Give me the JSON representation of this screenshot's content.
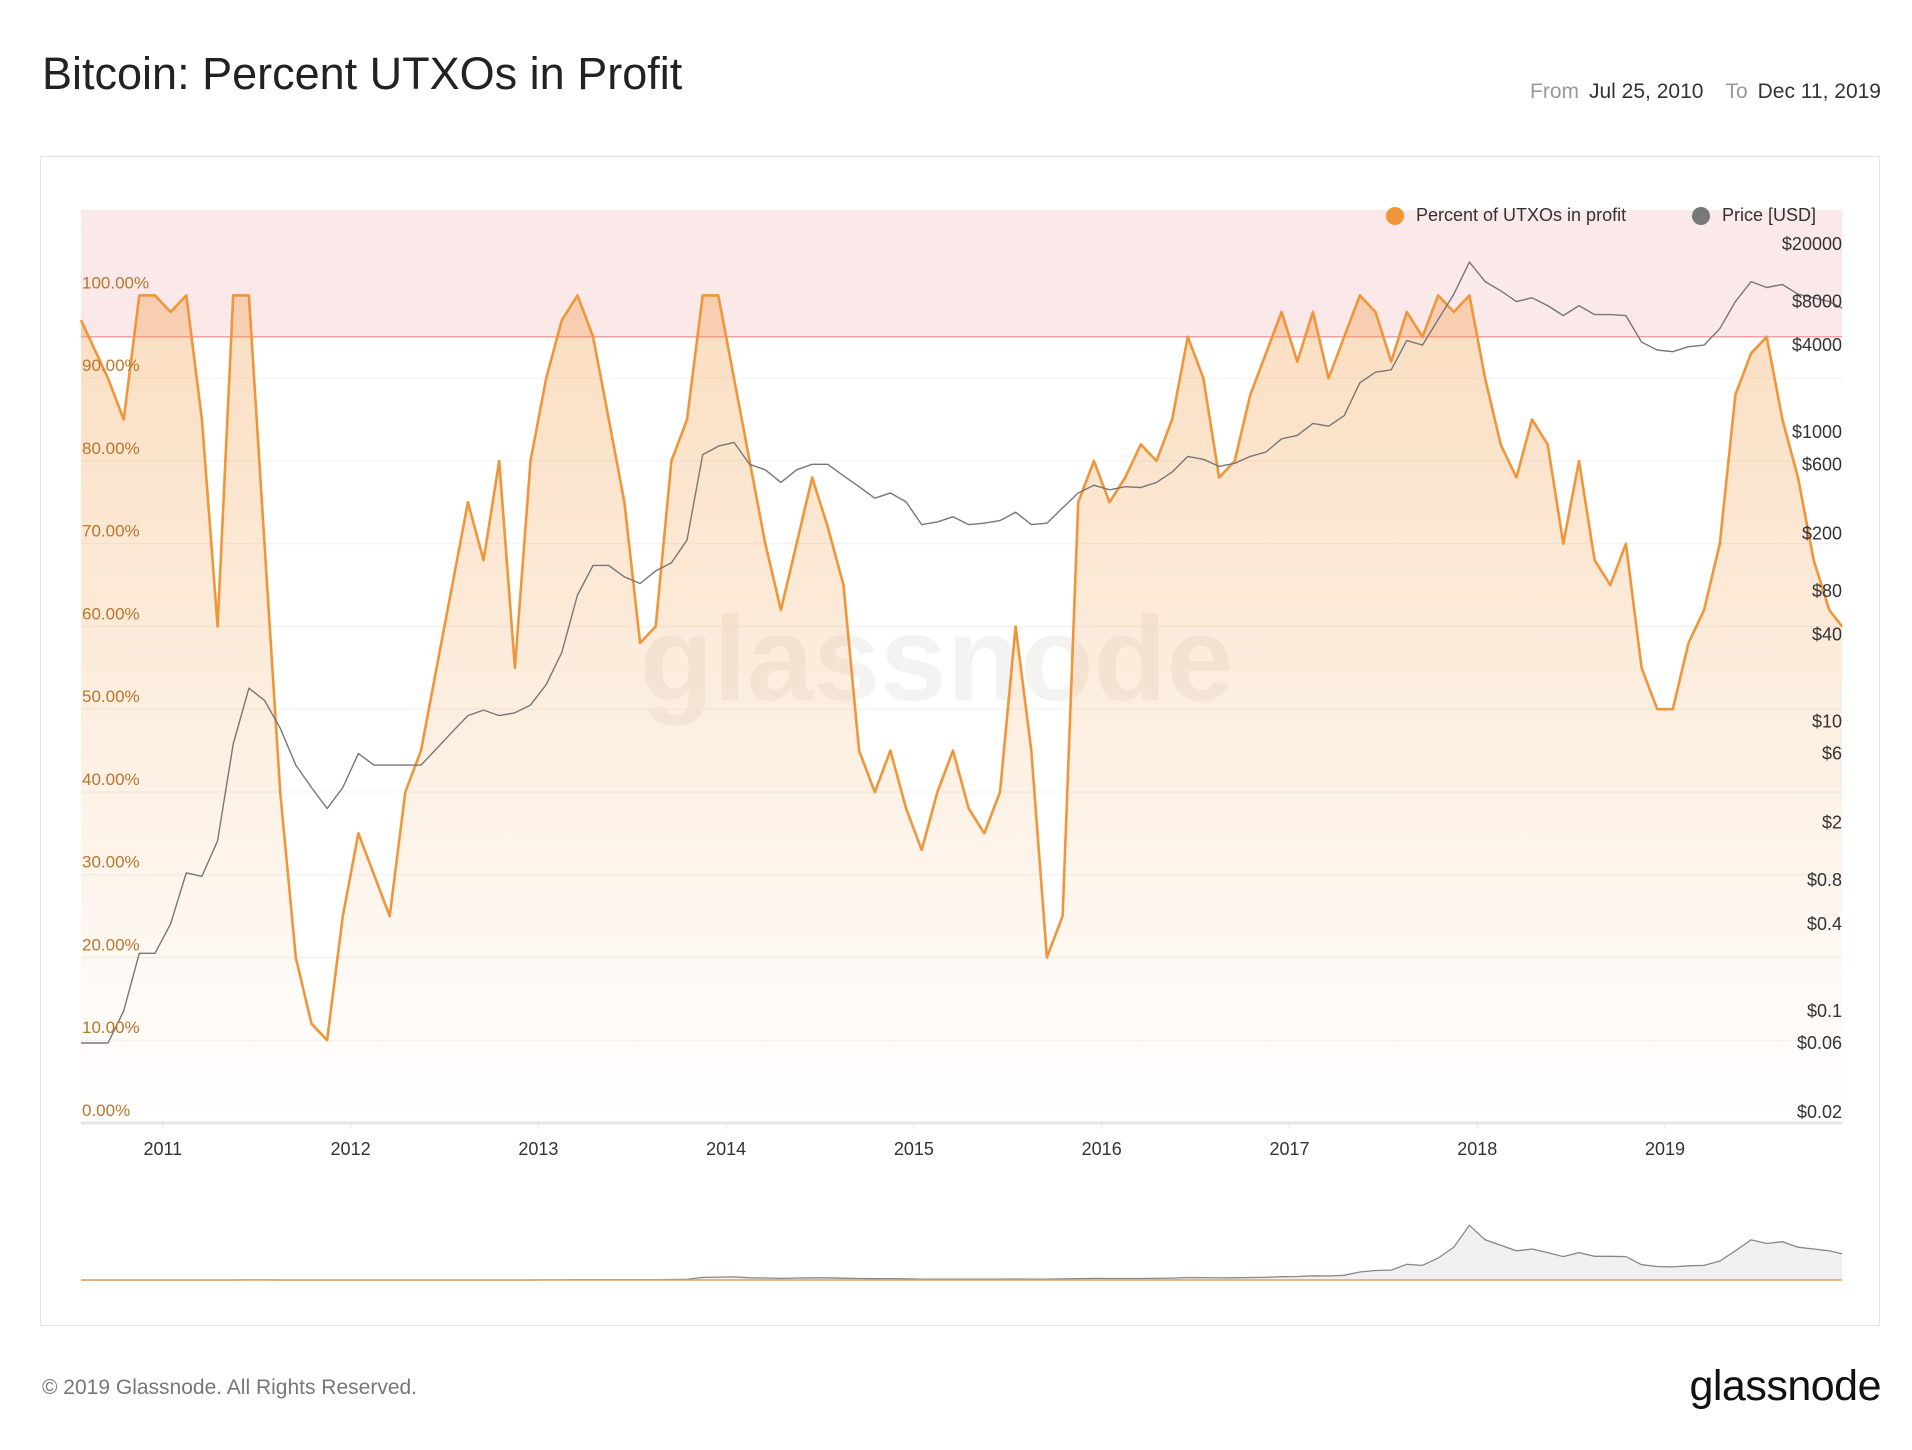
{
  "header": {
    "title": "Bitcoin: Percent UTXOs in Profit",
    "from_label": "From",
    "from_value": "Jul 25, 2010",
    "to_label": "To",
    "to_value": "Dec 11, 2019"
  },
  "footer": {
    "copyright": "© 2019 Glassnode. All Rights Reserved.",
    "logo": "glassnode"
  },
  "watermark": "glassnode",
  "colors": {
    "percent": "#f0963a",
    "price": "#777777",
    "band": "#fbe8e8",
    "band_line": "#f0a0a0"
  },
  "chart_data": {
    "type": "line",
    "title": "Bitcoin: Percent UTXOs in Profit",
    "legend_position": "top-right",
    "grid": true,
    "x_ticks": [
      "2011",
      "2012",
      "2013",
      "2014",
      "2015",
      "2016",
      "2017",
      "2018",
      "2019"
    ],
    "x_range": [
      "2010-07-25",
      "2019-12-11"
    ],
    "y_left": {
      "ticks": [
        "0.00%",
        "10.00%",
        "20.00%",
        "30.00%",
        "40.00%",
        "50.00%",
        "60.00%",
        "70.00%",
        "80.00%",
        "90.00%",
        "100.00%"
      ],
      "range": [
        0,
        100
      ]
    },
    "y_right": {
      "scale": "log",
      "ticks": [
        "$20000",
        "$8000",
        "$4000",
        "$1000",
        "$600",
        "$200",
        "$80",
        "$40",
        "$10",
        "$6",
        "$2",
        "$0.8",
        "$0.4",
        "$0.1",
        "$0.06",
        "$0.02"
      ],
      "range": [
        0.02,
        20000
      ]
    },
    "highlight_band": {
      "from_percent": 95,
      "to_percent": 100
    },
    "dates": [
      "2010-08",
      "2010-09",
      "2010-10",
      "2010-11",
      "2010-12",
      "2011-01",
      "2011-02",
      "2011-03",
      "2011-04",
      "2011-05",
      "2011-06",
      "2011-07",
      "2011-08",
      "2011-09",
      "2011-10",
      "2011-11",
      "2011-12",
      "2012-01",
      "2012-02",
      "2012-03",
      "2012-04",
      "2012-05",
      "2012-06",
      "2012-07",
      "2012-08",
      "2012-09",
      "2012-10",
      "2012-11",
      "2012-12",
      "2013-01",
      "2013-02",
      "2013-03",
      "2013-04",
      "2013-05",
      "2013-06",
      "2013-07",
      "2013-08",
      "2013-09",
      "2013-10",
      "2013-11",
      "2013-12",
      "2014-01",
      "2014-02",
      "2014-03",
      "2014-04",
      "2014-05",
      "2014-06",
      "2014-07",
      "2014-08",
      "2014-09",
      "2014-10",
      "2014-11",
      "2014-12",
      "2015-01",
      "2015-02",
      "2015-03",
      "2015-04",
      "2015-05",
      "2015-06",
      "2015-07",
      "2015-08",
      "2015-09",
      "2015-10",
      "2015-11",
      "2015-12",
      "2016-01",
      "2016-02",
      "2016-03",
      "2016-04",
      "2016-05",
      "2016-06",
      "2016-07",
      "2016-08",
      "2016-09",
      "2016-10",
      "2016-11",
      "2016-12",
      "2017-01",
      "2017-02",
      "2017-03",
      "2017-04",
      "2017-05",
      "2017-06",
      "2017-07",
      "2017-08",
      "2017-09",
      "2017-10",
      "2017-11",
      "2017-12",
      "2018-01",
      "2018-02",
      "2018-03",
      "2018-04",
      "2018-05",
      "2018-06",
      "2018-07",
      "2018-08",
      "2018-09",
      "2018-10",
      "2018-11",
      "2018-12",
      "2019-01",
      "2019-02",
      "2019-03",
      "2019-04",
      "2019-05",
      "2019-06",
      "2019-07",
      "2019-08",
      "2019-09",
      "2019-10",
      "2019-11",
      "2019-12"
    ],
    "series": [
      {
        "name": "Percent of UTXOs in profit",
        "axis": "left",
        "values": [
          97,
          90,
          85,
          100,
          100,
          98,
          100,
          85,
          60,
          100,
          100,
          70,
          40,
          20,
          12,
          10,
          25,
          35,
          30,
          25,
          40,
          45,
          55,
          65,
          75,
          68,
          80,
          55,
          80,
          90,
          97,
          100,
          95,
          85,
          75,
          58,
          60,
          80,
          85,
          100,
          100,
          90,
          80,
          70,
          62,
          70,
          78,
          72,
          65,
          45,
          40,
          45,
          38,
          33,
          40,
          45,
          38,
          35,
          40,
          60,
          45,
          20,
          25,
          75,
          80,
          75,
          78,
          82,
          80,
          85,
          95,
          90,
          78,
          80,
          88,
          93,
          98,
          92,
          98,
          90,
          95,
          100,
          98,
          92,
          98,
          95,
          100,
          98,
          100,
          90,
          82,
          78,
          85,
          82,
          70,
          80,
          68,
          65,
          70,
          55,
          50,
          50,
          58,
          62,
          70,
          88,
          93,
          95,
          85,
          78,
          68,
          62,
          60
        ]
      },
      {
        "name": "Price [USD]",
        "axis": "right",
        "values": [
          0.06,
          0.06,
          0.1,
          0.25,
          0.25,
          0.4,
          0.9,
          0.85,
          1.5,
          7,
          17,
          14,
          9,
          5,
          3.5,
          2.5,
          3.5,
          6,
          5,
          5,
          5,
          5,
          6.5,
          8.5,
          11,
          12,
          11,
          11.5,
          13,
          18,
          30,
          75,
          120,
          120,
          100,
          90,
          110,
          125,
          180,
          700,
          800,
          850,
          600,
          550,
          450,
          550,
          600,
          600,
          500,
          420,
          350,
          380,
          330,
          230,
          240,
          260,
          230,
          235,
          245,
          280,
          230,
          235,
          300,
          380,
          430,
          400,
          420,
          415,
          450,
          530,
          680,
          650,
          580,
          610,
          680,
          730,
          900,
          950,
          1150,
          1100,
          1300,
          2200,
          2600,
          2700,
          4300,
          4000,
          6000,
          9000,
          15000,
          11000,
          9500,
          8000,
          8500,
          7500,
          6400,
          7500,
          6500,
          6500,
          6400,
          4200,
          3700,
          3600,
          3900,
          4000,
          5200,
          8000,
          11000,
          10000,
          10500,
          9000,
          8500,
          8000,
          7200
        ]
      }
    ]
  }
}
